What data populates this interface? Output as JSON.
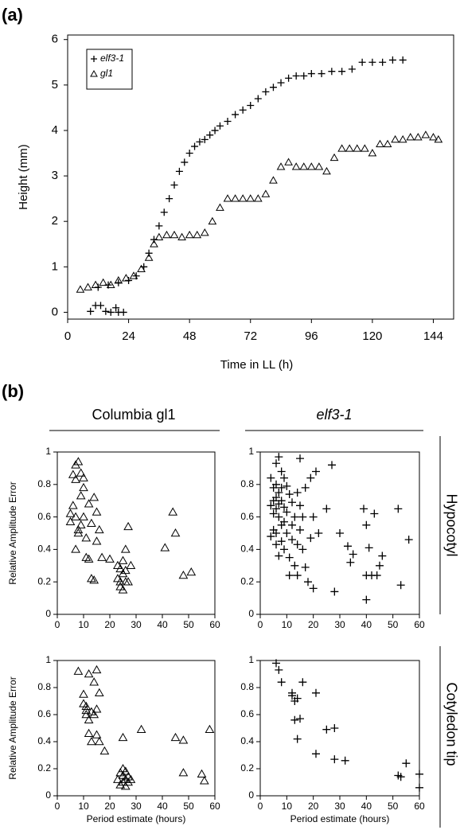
{
  "panel_labels": [
    "(a)",
    "(b)"
  ],
  "column_titles": [
    "Columbia gl1",
    "elf3-1"
  ],
  "row_titles": [
    "Hypocotyl",
    "Cotyledon tip"
  ],
  "chart_data": [
    {
      "type": "scatter",
      "xlabel": "Time in LL (h)",
      "ylabel": "Height (mm)",
      "xlim": [
        0,
        152
      ],
      "ylim": [
        -0.15,
        6.1
      ],
      "xticks": [
        0,
        24,
        48,
        72,
        96,
        120,
        144
      ],
      "yticks": [
        0,
        1,
        2,
        3,
        4,
        5,
        6
      ],
      "legend": "upper left",
      "series": [
        {
          "name": "elf3-1",
          "color": "#000000",
          "marker": "plus",
          "x": [
            9,
            11,
            13,
            15,
            17,
            19,
            20,
            22,
            12,
            16,
            20,
            24,
            27,
            30,
            32,
            34,
            36,
            38,
            40,
            42,
            44,
            46,
            48,
            50,
            52,
            54,
            56,
            58,
            60,
            63,
            66,
            69,
            72,
            75,
            78,
            81,
            84,
            87,
            90,
            93,
            96,
            100,
            104,
            108,
            112,
            116,
            120,
            124,
            128,
            132
          ],
          "values": [
            0.02,
            0.15,
            0.15,
            0.02,
            0,
            0.1,
            0,
            0,
            0.55,
            0.6,
            0.65,
            0.7,
            0.8,
            1.0,
            1.3,
            1.6,
            1.9,
            2.2,
            2.5,
            2.8,
            3.1,
            3.3,
            3.5,
            3.65,
            3.75,
            3.8,
            3.9,
            4.0,
            4.1,
            4.2,
            4.35,
            4.45,
            4.55,
            4.7,
            4.85,
            4.95,
            5.05,
            5.15,
            5.2,
            5.2,
            5.25,
            5.25,
            5.3,
            5.3,
            5.35,
            5.5,
            5.5,
            5.5,
            5.55,
            5.55
          ]
        },
        {
          "name": "gl1",
          "color": "#000000",
          "marker": "triangle",
          "x": [
            5,
            8,
            11,
            14,
            17,
            20,
            23,
            26,
            29,
            32,
            34,
            36,
            39,
            42,
            45,
            48,
            51,
            54,
            57,
            60,
            63,
            66,
            69,
            72,
            75,
            78,
            81,
            84,
            87,
            90,
            93,
            96,
            99,
            102,
            105,
            108,
            111,
            114,
            117,
            120,
            123,
            126,
            129,
            132,
            135,
            138,
            141,
            144,
            146
          ],
          "values": [
            0.5,
            0.55,
            0.6,
            0.65,
            0.6,
            0.7,
            0.75,
            0.8,
            0.95,
            1.2,
            1.5,
            1.65,
            1.7,
            1.7,
            1.65,
            1.7,
            1.7,
            1.75,
            2.0,
            2.3,
            2.5,
            2.5,
            2.5,
            2.5,
            2.5,
            2.6,
            2.9,
            3.2,
            3.3,
            3.2,
            3.2,
            3.2,
            3.2,
            3.1,
            3.4,
            3.6,
            3.6,
            3.6,
            3.6,
            3.5,
            3.7,
            3.7,
            3.8,
            3.8,
            3.85,
            3.85,
            3.9,
            3.85,
            3.8
          ]
        }
      ]
    },
    {
      "type": "scatter",
      "ylabel": "Relative Amplitude Error",
      "xlim": [
        0,
        60
      ],
      "ylim": [
        0,
        1
      ],
      "xticks": [
        0,
        10,
        20,
        30,
        40,
        50,
        60
      ],
      "yticks": [
        0,
        0.2,
        0.4,
        0.6,
        0.8,
        1
      ],
      "series": [
        {
          "color": "#000000",
          "marker": "triangle",
          "x": [
            5,
            5,
            6,
            6,
            7,
            7,
            7,
            8,
            8,
            8,
            9,
            9,
            9,
            10,
            10,
            10,
            7,
            11,
            11,
            12,
            12,
            13,
            13,
            14,
            14,
            15,
            15,
            16,
            17,
            20,
            23,
            23,
            24,
            24,
            24,
            25,
            25,
            25,
            26,
            26,
            26,
            27,
            27,
            28,
            41,
            44,
            45,
            48,
            51
          ],
          "values": [
            0.57,
            0.62,
            0.67,
            0.86,
            0.92,
            0.83,
            0.6,
            0.94,
            0.52,
            0.5,
            0.87,
            0.73,
            0.55,
            0.84,
            0.78,
            0.6,
            0.4,
            0.47,
            0.35,
            0.34,
            0.68,
            0.56,
            0.22,
            0.21,
            0.72,
            0.63,
            0.45,
            0.52,
            0.35,
            0.34,
            0.22,
            0.3,
            0.28,
            0.2,
            0.17,
            0.25,
            0.33,
            0.15,
            0.2,
            0.27,
            0.4,
            0.2,
            0.54,
            0.3,
            0.41,
            0.63,
            0.5,
            0.24,
            0.26
          ]
        }
      ]
    },
    {
      "type": "scatter",
      "xlim": [
        0,
        60
      ],
      "ylim": [
        0,
        1
      ],
      "xticks": [
        0,
        10,
        20,
        30,
        40,
        50,
        60
      ],
      "yticks": [
        0,
        0.2,
        0.4,
        0.6,
        0.8,
        1
      ],
      "series": [
        {
          "color": "#000000",
          "marker": "plus",
          "x": [
            4,
            4,
            4,
            5,
            5,
            5,
            5,
            6,
            6,
            6,
            6,
            6,
            6,
            7,
            7,
            7,
            7,
            7,
            8,
            8,
            8,
            8,
            8,
            9,
            9,
            9,
            9,
            10,
            10,
            10,
            11,
            11,
            11,
            12,
            12,
            12,
            13,
            13,
            14,
            14,
            14,
            15,
            15,
            15,
            16,
            16,
            17,
            17,
            18,
            19,
            19,
            20,
            20,
            21,
            22,
            25,
            27,
            28,
            30,
            33,
            34,
            35,
            39,
            40,
            40,
            40,
            41,
            42,
            43,
            44,
            45,
            46,
            52,
            53,
            56
          ],
          "values": [
            0.84,
            0.67,
            0.48,
            0.78,
            0.7,
            0.62,
            0.52,
            0.93,
            0.8,
            0.72,
            0.65,
            0.5,
            0.43,
            0.97,
            0.75,
            0.68,
            0.6,
            0.36,
            0.88,
            0.78,
            0.7,
            0.55,
            0.45,
            0.84,
            0.66,
            0.57,
            0.4,
            0.79,
            0.63,
            0.5,
            0.74,
            0.35,
            0.24,
            0.69,
            0.55,
            0.46,
            0.6,
            0.3,
            0.75,
            0.43,
            0.24,
            0.96,
            0.67,
            0.52,
            0.6,
            0.4,
            0.78,
            0.29,
            0.2,
            0.84,
            0.47,
            0.6,
            0.16,
            0.88,
            0.5,
            0.65,
            0.92,
            0.14,
            0.5,
            0.42,
            0.32,
            0.37,
            0.65,
            0.55,
            0.24,
            0.09,
            0.41,
            0.24,
            0.62,
            0.24,
            0.3,
            0.36,
            0.65,
            0.18,
            0.46
          ]
        }
      ]
    },
    {
      "type": "scatter",
      "xlabel": "Period estimate (hours)",
      "ylabel": "Relative Amplitude Error",
      "xlim": [
        0,
        60
      ],
      "ylim": [
        0,
        1
      ],
      "xticks": [
        0,
        10,
        20,
        30,
        40,
        50,
        60
      ],
      "yticks": [
        0,
        0.2,
        0.4,
        0.6,
        0.8,
        1
      ],
      "series": [
        {
          "color": "#000000",
          "marker": "triangle",
          "x": [
            8,
            10,
            10,
            11,
            11,
            11,
            12,
            12,
            12,
            13,
            13,
            14,
            14,
            15,
            15,
            15,
            16,
            16,
            18,
            25,
            23,
            24,
            24,
            25,
            25,
            25,
            26,
            26,
            26,
            27,
            27,
            28,
            32,
            45,
            48,
            48,
            55,
            56,
            58
          ],
          "values": [
            0.92,
            0.75,
            0.68,
            0.66,
            0.63,
            0.6,
            0.9,
            0.46,
            0.56,
            0.4,
            0.62,
            0.84,
            0.6,
            0.93,
            0.64,
            0.45,
            0.76,
            0.4,
            0.33,
            0.43,
            0.12,
            0.17,
            0.08,
            0.1,
            0.15,
            0.2,
            0.07,
            0.12,
            0.18,
            0.1,
            0.14,
            0.12,
            0.49,
            0.43,
            0.41,
            0.17,
            0.16,
            0.11,
            0.49
          ]
        }
      ]
    },
    {
      "type": "scatter",
      "xlabel": "Period estimate (hours)",
      "xlim": [
        0,
        60
      ],
      "ylim": [
        0,
        1
      ],
      "xticks": [
        0,
        10,
        20,
        30,
        40,
        50,
        60
      ],
      "yticks": [
        0,
        0.2,
        0.4,
        0.6,
        0.8,
        1
      ],
      "series": [
        {
          "color": "#000000",
          "marker": "plus",
          "x": [
            6,
            7,
            8,
            12,
            12,
            13,
            13,
            14,
            14,
            15,
            16,
            21,
            21,
            25,
            28,
            28,
            32,
            52,
            53,
            55,
            60,
            60
          ],
          "values": [
            0.98,
            0.93,
            0.84,
            0.76,
            0.74,
            0.7,
            0.56,
            0.72,
            0.42,
            0.57,
            0.84,
            0.76,
            0.31,
            0.49,
            0.5,
            0.27,
            0.26,
            0.15,
            0.14,
            0.24,
            0.16,
            0.06
          ]
        }
      ]
    }
  ]
}
